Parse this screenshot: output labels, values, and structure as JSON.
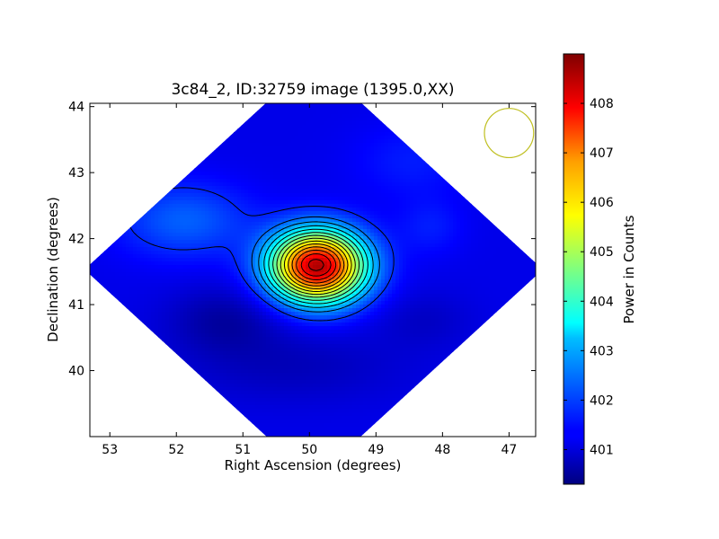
{
  "chart_data": {
    "type": "heatmap",
    "title": "3c84_2, ID:32759 image (1395.0,XX)",
    "xlabel": "Right Ascension (degrees)",
    "ylabel": "Declination (degrees)",
    "xlim": [
      53.3,
      46.6
    ],
    "ylim": [
      39.0,
      44.05
    ],
    "x_ticks": [
      53,
      52,
      51,
      50,
      49,
      48,
      47
    ],
    "y_ticks": [
      40,
      41,
      42,
      43,
      44
    ],
    "colorbar": {
      "label": "Power in Counts",
      "range": [
        400.3,
        409.0
      ],
      "ticks": [
        401,
        402,
        403,
        404,
        405,
        406,
        407,
        408
      ],
      "colormap": "jet"
    },
    "background_level": 401.2,
    "peak": {
      "ra": 49.9,
      "dec": 41.6,
      "value": 408.9
    },
    "sources": [
      {
        "ra": 49.9,
        "dec": 41.6,
        "sigma_ra": 0.5,
        "sigma_dec": 0.38,
        "amplitude": 7.4
      },
      {
        "ra": 51.9,
        "dec": 42.3,
        "sigma_ra": 0.7,
        "sigma_dec": 0.4,
        "amplitude": 1.0
      },
      {
        "ra": 48.2,
        "dec": 42.2,
        "sigma_ra": 0.35,
        "sigma_dec": 0.3,
        "amplitude": 0.4
      },
      {
        "ra": 48.5,
        "dec": 43.2,
        "sigma_ra": 0.6,
        "sigma_dec": 0.4,
        "amplitude": 0.4
      },
      {
        "ra": 50.3,
        "dec": 40.1,
        "sigma_ra": 1.2,
        "sigma_dec": 0.4,
        "amplitude": -0.4
      },
      {
        "ra": 51.3,
        "dec": 40.8,
        "sigma_ra": 0.6,
        "sigma_dec": 0.35,
        "amplitude": -0.6
      },
      {
        "ra": 48.3,
        "dec": 40.8,
        "sigma_ra": 0.5,
        "sigma_dec": 0.3,
        "amplitude": -0.3
      }
    ],
    "contour_levels": [
      401.7,
      402.4,
      402.9,
      403.4,
      403.9,
      404.4,
      404.9,
      405.4,
      405.9,
      406.4,
      406.9,
      407.4,
      407.9,
      408.4
    ],
    "beam": {
      "ra": 47.0,
      "dec": 43.6,
      "radius_deg": 0.37,
      "color": "#bfbf1f"
    }
  }
}
